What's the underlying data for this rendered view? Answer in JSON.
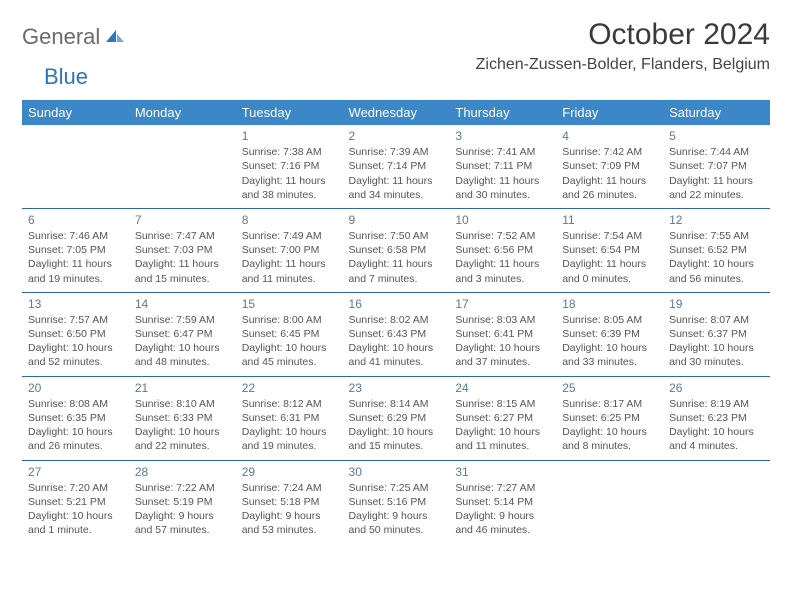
{
  "logo": {
    "general": "General",
    "blue": "Blue"
  },
  "header": {
    "month_title": "October 2024",
    "location": "Zichen-Zussen-Bolder, Flanders, Belgium"
  },
  "colors": {
    "header_bg": "#3b87c8",
    "header_text": "#ffffff",
    "week_sep": "#2d6aa3",
    "daynum": "#5a7a96",
    "body_text": "#555555",
    "logo_general": "#6b6b6b",
    "logo_blue": "#2a77bd"
  },
  "dow": [
    "Sunday",
    "Monday",
    "Tuesday",
    "Wednesday",
    "Thursday",
    "Friday",
    "Saturday"
  ],
  "weeks": [
    [
      null,
      null,
      {
        "n": "1",
        "sr": "7:38 AM",
        "ss": "7:16 PM",
        "dl": "11 hours and 38 minutes."
      },
      {
        "n": "2",
        "sr": "7:39 AM",
        "ss": "7:14 PM",
        "dl": "11 hours and 34 minutes."
      },
      {
        "n": "3",
        "sr": "7:41 AM",
        "ss": "7:11 PM",
        "dl": "11 hours and 30 minutes."
      },
      {
        "n": "4",
        "sr": "7:42 AM",
        "ss": "7:09 PM",
        "dl": "11 hours and 26 minutes."
      },
      {
        "n": "5",
        "sr": "7:44 AM",
        "ss": "7:07 PM",
        "dl": "11 hours and 22 minutes."
      }
    ],
    [
      {
        "n": "6",
        "sr": "7:46 AM",
        "ss": "7:05 PM",
        "dl": "11 hours and 19 minutes."
      },
      {
        "n": "7",
        "sr": "7:47 AM",
        "ss": "7:03 PM",
        "dl": "11 hours and 15 minutes."
      },
      {
        "n": "8",
        "sr": "7:49 AM",
        "ss": "7:00 PM",
        "dl": "11 hours and 11 minutes."
      },
      {
        "n": "9",
        "sr": "7:50 AM",
        "ss": "6:58 PM",
        "dl": "11 hours and 7 minutes."
      },
      {
        "n": "10",
        "sr": "7:52 AM",
        "ss": "6:56 PM",
        "dl": "11 hours and 3 minutes."
      },
      {
        "n": "11",
        "sr": "7:54 AM",
        "ss": "6:54 PM",
        "dl": "11 hours and 0 minutes."
      },
      {
        "n": "12",
        "sr": "7:55 AM",
        "ss": "6:52 PM",
        "dl": "10 hours and 56 minutes."
      }
    ],
    [
      {
        "n": "13",
        "sr": "7:57 AM",
        "ss": "6:50 PM",
        "dl": "10 hours and 52 minutes."
      },
      {
        "n": "14",
        "sr": "7:59 AM",
        "ss": "6:47 PM",
        "dl": "10 hours and 48 minutes."
      },
      {
        "n": "15",
        "sr": "8:00 AM",
        "ss": "6:45 PM",
        "dl": "10 hours and 45 minutes."
      },
      {
        "n": "16",
        "sr": "8:02 AM",
        "ss": "6:43 PM",
        "dl": "10 hours and 41 minutes."
      },
      {
        "n": "17",
        "sr": "8:03 AM",
        "ss": "6:41 PM",
        "dl": "10 hours and 37 minutes."
      },
      {
        "n": "18",
        "sr": "8:05 AM",
        "ss": "6:39 PM",
        "dl": "10 hours and 33 minutes."
      },
      {
        "n": "19",
        "sr": "8:07 AM",
        "ss": "6:37 PM",
        "dl": "10 hours and 30 minutes."
      }
    ],
    [
      {
        "n": "20",
        "sr": "8:08 AM",
        "ss": "6:35 PM",
        "dl": "10 hours and 26 minutes."
      },
      {
        "n": "21",
        "sr": "8:10 AM",
        "ss": "6:33 PM",
        "dl": "10 hours and 22 minutes."
      },
      {
        "n": "22",
        "sr": "8:12 AM",
        "ss": "6:31 PM",
        "dl": "10 hours and 19 minutes."
      },
      {
        "n": "23",
        "sr": "8:14 AM",
        "ss": "6:29 PM",
        "dl": "10 hours and 15 minutes."
      },
      {
        "n": "24",
        "sr": "8:15 AM",
        "ss": "6:27 PM",
        "dl": "10 hours and 11 minutes."
      },
      {
        "n": "25",
        "sr": "8:17 AM",
        "ss": "6:25 PM",
        "dl": "10 hours and 8 minutes."
      },
      {
        "n": "26",
        "sr": "8:19 AM",
        "ss": "6:23 PM",
        "dl": "10 hours and 4 minutes."
      }
    ],
    [
      {
        "n": "27",
        "sr": "7:20 AM",
        "ss": "5:21 PM",
        "dl": "10 hours and 1 minute."
      },
      {
        "n": "28",
        "sr": "7:22 AM",
        "ss": "5:19 PM",
        "dl": "9 hours and 57 minutes."
      },
      {
        "n": "29",
        "sr": "7:24 AM",
        "ss": "5:18 PM",
        "dl": "9 hours and 53 minutes."
      },
      {
        "n": "30",
        "sr": "7:25 AM",
        "ss": "5:16 PM",
        "dl": "9 hours and 50 minutes."
      },
      {
        "n": "31",
        "sr": "7:27 AM",
        "ss": "5:14 PM",
        "dl": "9 hours and 46 minutes."
      },
      null,
      null
    ]
  ],
  "labels": {
    "sunrise": "Sunrise:",
    "sunset": "Sunset:",
    "daylight": "Daylight:"
  }
}
